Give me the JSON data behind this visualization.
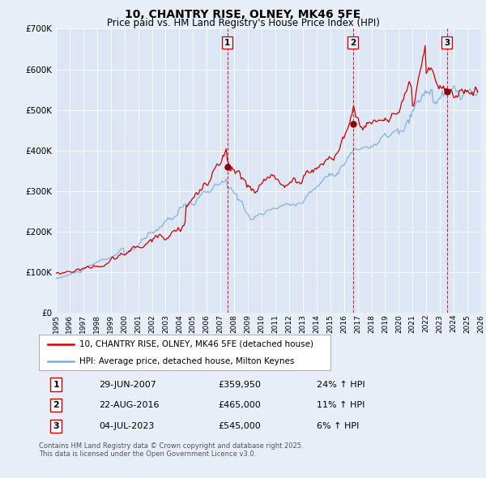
{
  "title": "10, CHANTRY RISE, OLNEY, MK46 5FE",
  "subtitle": "Price paid vs. HM Land Registry's House Price Index (HPI)",
  "bg_color": "#e8eef8",
  "plot_bg_color": "#dce6f5",
  "legend_label_red": "10, CHANTRY RISE, OLNEY, MK46 5FE (detached house)",
  "legend_label_blue": "HPI: Average price, detached house, Milton Keynes",
  "transactions": [
    {
      "num": 1,
      "date": "29-JUN-2007",
      "price": "£359,950",
      "change": "24% ↑ HPI",
      "year": 2007.5
    },
    {
      "num": 2,
      "date": "22-AUG-2016",
      "price": "£465,000",
      "change": "11% ↑ HPI",
      "year": 2016.65
    },
    {
      "num": 3,
      "date": "04-JUL-2023",
      "price": "£545,000",
      "change": "6% ↑ HPI",
      "year": 2023.5
    }
  ],
  "footer": "Contains HM Land Registry data © Crown copyright and database right 2025.\nThis data is licensed under the Open Government Licence v3.0.",
  "xmin": 1995,
  "xmax": 2026,
  "ymin": 0,
  "ymax": 700000,
  "yticks": [
    0,
    100000,
    200000,
    300000,
    400000,
    500000,
    600000,
    700000
  ],
  "ytick_labels": [
    "£0",
    "£100K",
    "£200K",
    "£300K",
    "£400K",
    "£500K",
    "£600K",
    "£700K"
  ],
  "red_color": "#cc0000",
  "blue_color": "#7aaddb",
  "fill_color": "#c5d9ef",
  "dot_color": "#880000",
  "vline_color": "#cc0000",
  "grid_color": "#ffffff"
}
